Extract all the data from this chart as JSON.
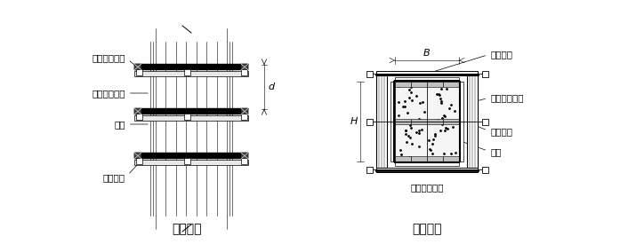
{
  "title_left": "柱立面图",
  "title_right": "柱剖面图",
  "label_zhugu": "柱箍（方木）",
  "label_juleng": "竖楞（方木）",
  "label_mianbao": "面板",
  "label_duola": "对拉螺栓",
  "label_B": "B",
  "label_d": "d",
  "label_H": "H",
  "bg_color": "#ffffff",
  "font_size": 7.5,
  "title_font_size": 10
}
